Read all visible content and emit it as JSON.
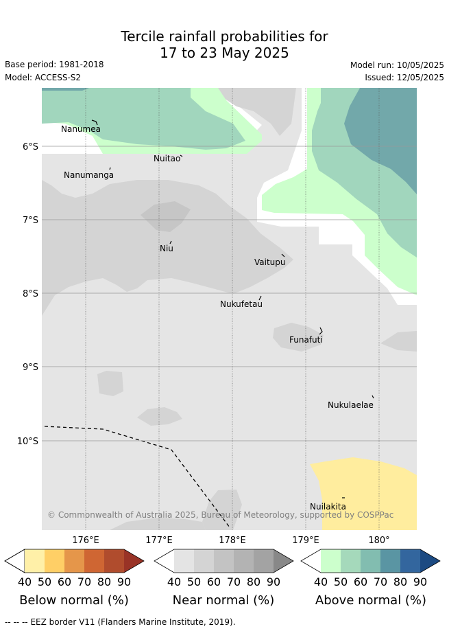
{
  "header": {
    "title_line1": "Tercile rainfall probabilities for",
    "title_line2": "17 to 23 May 2025",
    "base_period": "Base period: 1981-2018",
    "model": "Model: ACCESS-S2",
    "model_run": "Model run: 10/05/2025",
    "issued": "Issued: 12/05/2025"
  },
  "map": {
    "lat_ticks": [
      "6°S",
      "7°S",
      "8°S",
      "9°S",
      "10°S"
    ],
    "lon_ticks": [
      "176°E",
      "177°E",
      "178°E",
      "179°E",
      "180°"
    ],
    "places": [
      "Nanumea",
      "Nuitao",
      "Nanumanga",
      "Niu",
      "Vaitupu",
      "Nukufetau",
      "Funafuti",
      "Nukulaelae",
      "Nuilakita"
    ],
    "copyright": "© Commonwealth of Australia 2025, Bureau of Meteorology, supported by COSPPac",
    "colors": {
      "near_40": "#e5e5e5",
      "near_50": "#d4d4d4",
      "near_60": "#c6c6c6",
      "above_40": "#ccffcc",
      "above_50": "#a1d6bd",
      "above_60": "#72a8aa",
      "below_40": "#ffed9e"
    }
  },
  "colorbars": [
    {
      "title": "Below normal (%)",
      "ticks": [
        "40",
        "50",
        "60",
        "70",
        "80",
        "90"
      ],
      "colors": [
        "#fff0a8",
        "#ffcf66",
        "#e5964a",
        "#cf6633",
        "#b04c2d",
        "#993326"
      ]
    },
    {
      "title": "Near normal (%)",
      "ticks": [
        "40",
        "50",
        "60",
        "70",
        "80",
        "90"
      ],
      "colors": [
        "#e4e4e4",
        "#d4d4d4",
        "#c3c3c3",
        "#b3b3b3",
        "#a3a3a3",
        "#888888"
      ]
    },
    {
      "title": "Above normal (%)",
      "ticks": [
        "40",
        "50",
        "60",
        "70",
        "80",
        "90"
      ],
      "colors": [
        "#ccffcc",
        "#a5d9bb",
        "#82bdb0",
        "#5a95a3",
        "#33669e",
        "#1c4a82"
      ]
    }
  ],
  "footer": {
    "legend_symbol": "-- -- --",
    "legend_text": "EEZ border V11 (Flanders Marine Institute, 2019)."
  }
}
